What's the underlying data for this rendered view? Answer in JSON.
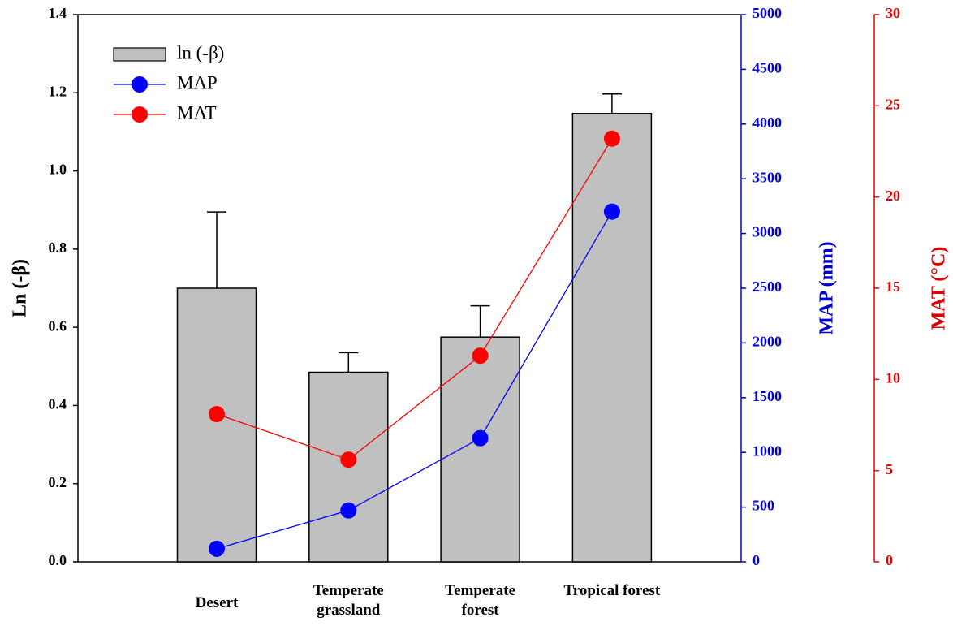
{
  "chart_data": {
    "type": "bar",
    "y_label": "Ln (-β)",
    "y2_label": "MAP (mm)",
    "y3_label": "MAT (°C)",
    "categories": [
      "Desert",
      "Temperate grassland",
      "Temperate forest",
      "Tropical forest"
    ],
    "ylim": [
      0,
      1.4
    ],
    "yticks": [
      {
        "value": 0,
        "label": "0.0"
      },
      0.2,
      0.4,
      0.6,
      0.8,
      {
        "value": 1,
        "label": "1.0"
      },
      1.2,
      1.4
    ],
    "y2lim": [
      0,
      5000
    ],
    "y2ticks": [
      0,
      500,
      1000,
      1500,
      2000,
      2500,
      3000,
      3500,
      4000,
      4500,
      5000
    ],
    "y2color": "#0000cc",
    "y3lim": [
      0,
      30
    ],
    "y3ticks": [
      0,
      5,
      10,
      15,
      20,
      25,
      30
    ],
    "y3color": "#dd0000",
    "series": [
      {
        "name": "ln (-β)",
        "type": "bar",
        "color": "#c0c0c0",
        "values": [
          0.7,
          0.485,
          0.575,
          1.147
        ],
        "errors": [
          0.195,
          0.05,
          0.08,
          0.05
        ]
      },
      {
        "name": "MAP",
        "type": "line",
        "axis": "y2",
        "color": "#0000ff",
        "values": [
          120,
          470,
          1130,
          3200
        ]
      },
      {
        "name": "MAT",
        "type": "line",
        "axis": "y3",
        "color": "#ff0000",
        "values": [
          8.1,
          5.6,
          11.3,
          23.2
        ]
      }
    ]
  }
}
